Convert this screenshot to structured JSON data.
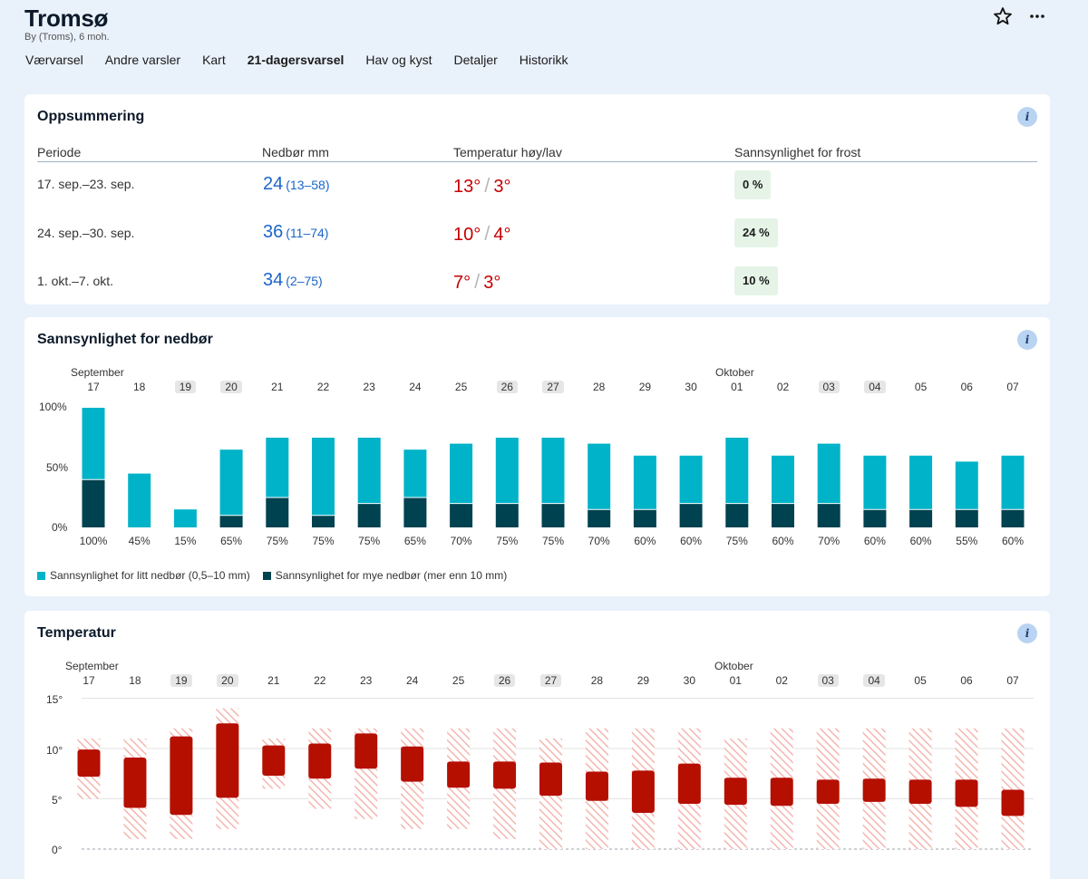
{
  "header": {
    "title": "Tromsø",
    "subtitle": "By (Troms), 6 moh.",
    "nav": [
      "Værvarsel",
      "Andre varsler",
      "Kart",
      "21-dagersvarsel",
      "Hav og kyst",
      "Detaljer",
      "Historikk"
    ],
    "active_nav": "21-dagersvarsel",
    "icons": [
      "star-icon",
      "more-icon"
    ]
  },
  "summary": {
    "title": "Oppsummering",
    "columns": [
      "Periode",
      "Nedbør mm",
      "Temperatur høy/lav",
      "Sannsynlighet for frost"
    ],
    "rows": [
      {
        "period": "17. sep.–23. sep.",
        "precip": "24",
        "precip_range": "(13–58)",
        "high": "13°",
        "low": "3°",
        "frost": "0 %"
      },
      {
        "period": "24. sep.–30. sep.",
        "precip": "36",
        "precip_range": "(11–74)",
        "high": "10°",
        "low": "4°",
        "frost": "24 %"
      },
      {
        "period": "1. okt.–7. okt.",
        "precip": "34",
        "precip_range": "(2–75)",
        "high": "7°",
        "low": "3°",
        "frost": "10 %"
      }
    ]
  },
  "days": {
    "months": {
      "september": "September",
      "oktober": "Oktober"
    },
    "labels": [
      "17",
      "18",
      "19",
      "20",
      "21",
      "22",
      "23",
      "24",
      "25",
      "26",
      "27",
      "28",
      "29",
      "30",
      "01",
      "02",
      "03",
      "04",
      "05",
      "06",
      "07"
    ],
    "weekend": [
      false,
      false,
      true,
      true,
      false,
      false,
      false,
      false,
      false,
      true,
      true,
      false,
      false,
      false,
      false,
      false,
      true,
      true,
      false,
      false,
      false
    ]
  },
  "precip_chart": {
    "title": "Sannsynlighet for nedbør",
    "y_ticks": [
      "100%",
      "50%",
      "0%"
    ],
    "legend": {
      "light": "Sannsynlighet for litt nedbør (0,5–10 mm)",
      "heavy": "Sannsynlighet for mye nedbør (mer enn 10 mm)"
    },
    "colors": {
      "light": "#00b3c8",
      "heavy": "#00424f"
    },
    "chart_data": {
      "type": "bar",
      "categories": [
        "17",
        "18",
        "19",
        "20",
        "21",
        "22",
        "23",
        "24",
        "25",
        "26",
        "27",
        "28",
        "29",
        "30",
        "01",
        "02",
        "03",
        "04",
        "05",
        "06",
        "07"
      ],
      "series": [
        {
          "name": "Sannsynlighet for mye nedbør (mer enn 10 mm)",
          "values": [
            40,
            0,
            0,
            10,
            25,
            10,
            20,
            25,
            20,
            20,
            20,
            15,
            15,
            20,
            20,
            20,
            20,
            15,
            15,
            15,
            15
          ]
        },
        {
          "name": "Sannsynlighet for litt nedbør (0,5–10 mm)",
          "values": [
            60,
            45,
            15,
            55,
            50,
            65,
            55,
            40,
            50,
            55,
            55,
            55,
            45,
            40,
            55,
            40,
            50,
            45,
            45,
            40,
            45
          ]
        }
      ],
      "totals": [
        "100%",
        "45%",
        "15%",
        "65%",
        "75%",
        "75%",
        "75%",
        "65%",
        "70%",
        "75%",
        "75%",
        "70%",
        "60%",
        "60%",
        "75%",
        "60%",
        "70%",
        "60%",
        "60%",
        "55%",
        "60%"
      ],
      "ylim": [
        0,
        100
      ]
    }
  },
  "temp_chart": {
    "title": "Temperatur",
    "y_ticks": [
      "15°",
      "10°",
      "5°",
      "0°"
    ],
    "colors": {
      "range": "#b50f00",
      "outer": "#f4b6b0"
    },
    "chart_data": {
      "type": "bar",
      "categories": [
        "17",
        "18",
        "19",
        "20",
        "21",
        "22",
        "23",
        "24",
        "25",
        "26",
        "27",
        "28",
        "29",
        "30",
        "01",
        "02",
        "03",
        "04",
        "05",
        "06",
        "07"
      ],
      "series": [
        {
          "values_low": [
            7.2,
            4.1,
            3.4,
            5.1,
            7.3,
            7.0,
            8.0,
            6.7,
            6.1,
            6.0,
            5.3,
            4.8,
            3.6,
            4.5,
            4.4,
            4.3,
            4.5,
            4.7,
            4.5,
            4.2,
            3.3
          ],
          "values_high": [
            9.9,
            9.1,
            11.2,
            12.5,
            10.3,
            10.5,
            11.5,
            10.2,
            8.7,
            8.7,
            8.6,
            7.7,
            7.8,
            8.5,
            7.1,
            7.1,
            6.9,
            7.0,
            6.9,
            6.9,
            5.9
          ]
        },
        {
          "values_low": [
            5,
            1,
            1,
            2,
            6,
            4,
            3,
            2,
            2,
            1,
            0,
            0,
            0,
            0,
            0,
            0,
            0,
            0,
            0,
            0,
            0
          ],
          "values_high": [
            11,
            11,
            12,
            14,
            11,
            12,
            12,
            12,
            12,
            12,
            11,
            12,
            12,
            12,
            11,
            12,
            12,
            12,
            12,
            12,
            12
          ]
        }
      ],
      "ylim": [
        0,
        15
      ]
    }
  }
}
